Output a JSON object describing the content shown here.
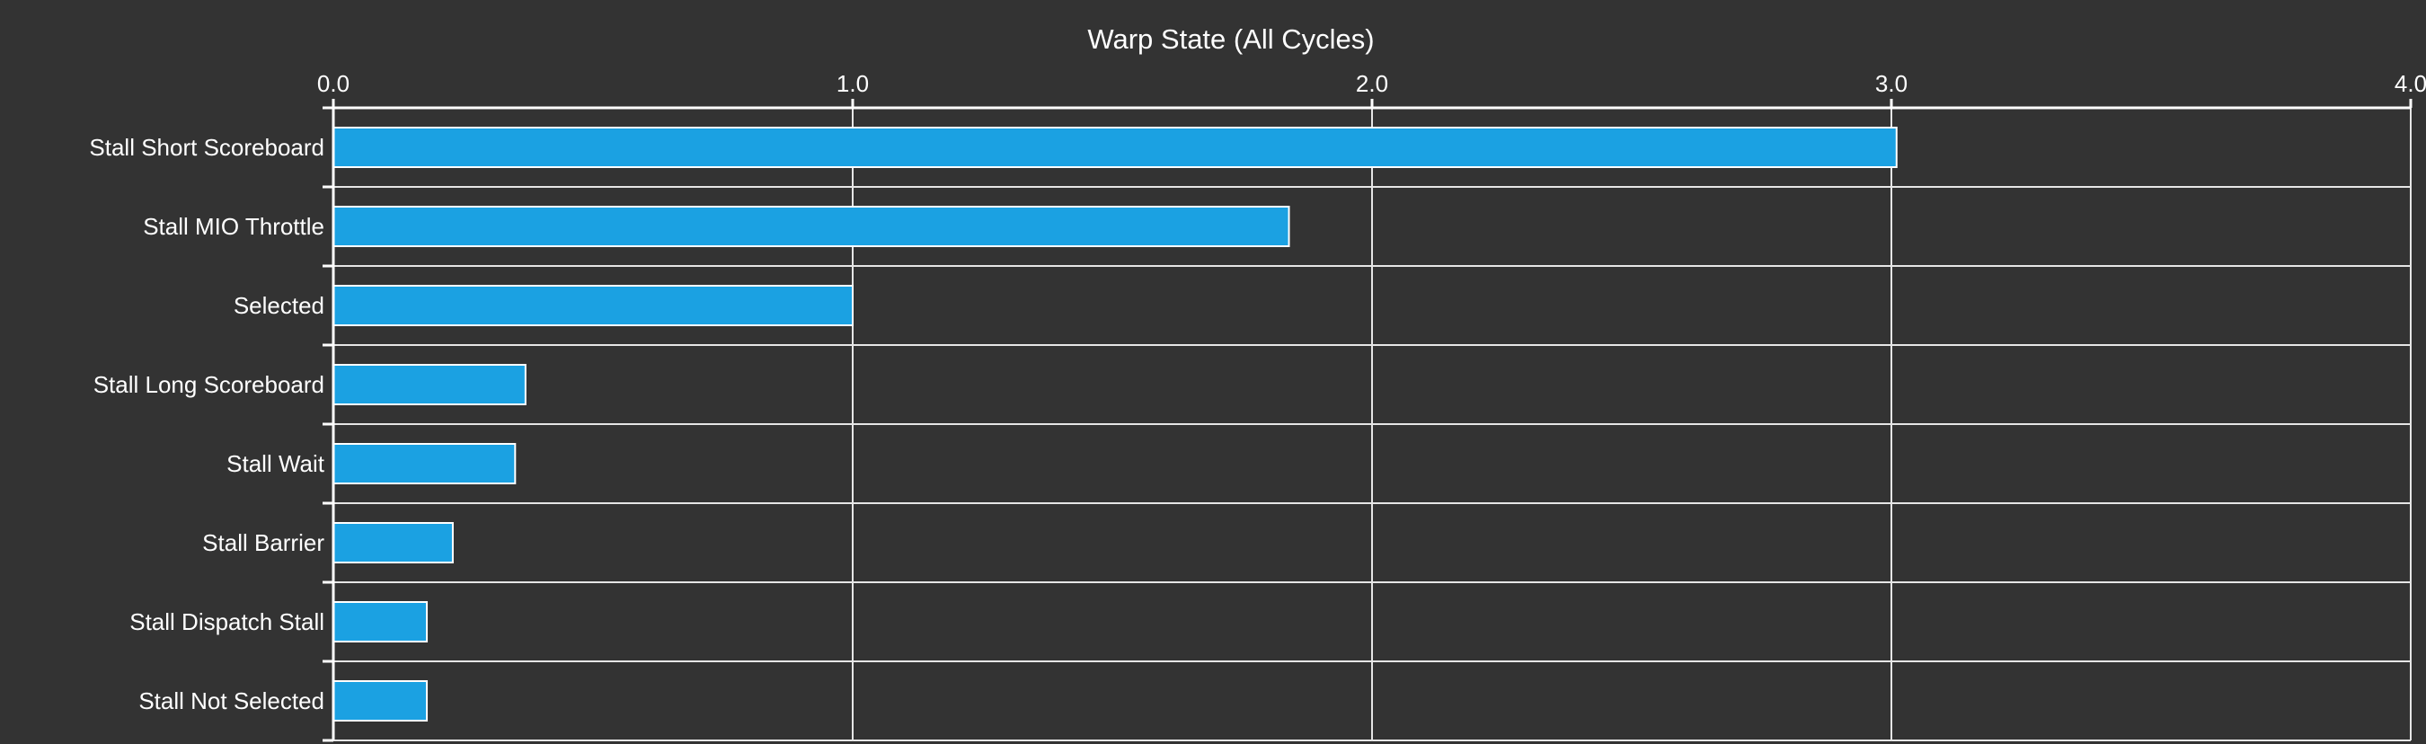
{
  "chart_data": {
    "type": "bar",
    "orientation": "horizontal",
    "title": "Warp State (All Cycles)",
    "xlabel": "",
    "ylabel": "",
    "xlim": [
      0,
      4
    ],
    "x_ticks": [
      0,
      1,
      2,
      3,
      4
    ],
    "x_tick_labels": [
      "0.0",
      "1.0",
      "2.0",
      "3.0",
      "4.0"
    ],
    "x_axis_position": "top",
    "grid": true,
    "legend": "none",
    "categories": [
      "Stall Short Scoreboard",
      "Stall MIO Throttle",
      "Selected",
      "Stall Long Scoreboard",
      "Stall Wait",
      "Stall Barrier",
      "Stall Dispatch Stall",
      "Stall Not Selected"
    ],
    "values": [
      3.01,
      1.84,
      1.0,
      0.37,
      0.35,
      0.23,
      0.18,
      0.18
    ],
    "colors": {
      "background": "#333333",
      "bar_fill": "#1ba1e2",
      "bar_stroke": "#ffffff",
      "grid": "#e6e6e6",
      "text": "#ffffff"
    }
  }
}
